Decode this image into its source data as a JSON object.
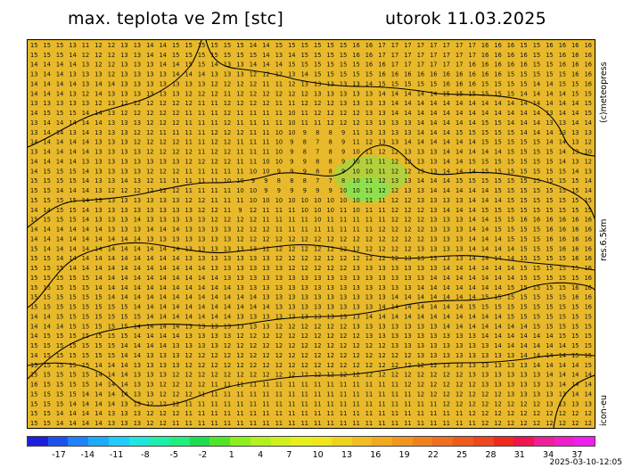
{
  "title_left": "max. teplota ve 2m [stc]",
  "title_right": "utorok 11.03.2025",
  "side_brand": "(c)meteopress",
  "side_res": "res.6.5km",
  "side_model": "icon-eu",
  "timestamp": "2025-03-10-12:05",
  "colorbar": {
    "tick_labels": [
      "-17",
      "-14",
      "-11",
      "-8",
      "-5",
      "-2",
      "1",
      "4",
      "7",
      "10",
      "13",
      "16",
      "19",
      "22",
      "25",
      "28",
      "31",
      "34",
      "37"
    ],
    "colors": [
      "#1e1edc",
      "#1e50f0",
      "#1e82fa",
      "#1eaafa",
      "#1ecdfa",
      "#1ee6dc",
      "#1ef0aa",
      "#1ef07d",
      "#1edc50",
      "#50e628",
      "#8cf01e",
      "#b4f01e",
      "#d2f01e",
      "#e6f01e",
      "#f0e61e",
      "#f0d21e",
      "#f0be1e",
      "#f0aa1e",
      "#f0961e",
      "#f0821e",
      "#f06e1e",
      "#f05a1e",
      "#f0461e",
      "#f0281e",
      "#f01450",
      "#f01e96",
      "#f01ec8",
      "#f01ef0"
    ]
  },
  "map": {
    "base_color": "#e8b92a",
    "cold_color": "#8fe04a",
    "line_color": "#000000",
    "rows": [
      "15 15 15 13 11 12 12 13 13 14 14 15 15 15 15 15 15 14 14 15 15 15 15 15 15 16 16 17 17 17 17 17 17 17 17 16 16 16 15 15 16 16 16 16",
      "15 15 15 14 12 12 12 13 13 14 14 15 15 15 15 15 15 15 14 13 14 15 15 15 15 16 16 17 17 17 17 17 17 17 17 16 16 16 16 15 15 16 16 16",
      "14 14 14 14 13 12 12 13 13 13 14 14 15 15 14 13 13 14 14 14 15 15 15 15 15 15 16 16 17 17 17 17 17 17 16 16 16 16 16 15 15 16 16 16",
      "13 14 14 13 13 13 12 13 13 13 13 14 14 14 13 13 13 12 12 12 13 14 15 15 15 15 15 16 16 16 16 16 16 16 16 16 16 15 15 15 15 15 16 16",
      "14 14 14 14 13 14 14 13 13 13 13 13 13 13 12 12 12 12 11 11 12 13 13 13 13 13 14 15 15 15 15 15 16 16 16 15 15 15 15 14 14 15 15 16",
      "14 14 14 13 12 14 13 13 13 13 13 13 12 12 12 11 12 12 12 12 12 12 13 13 13 13 13 14 14 14 14 14 15 15 15 15 15 15 14 14 14 14 15 15",
      "13 13 13 13 13 12 13 12 12 12 12 12 12 11 11 12 12 12 12 11 11 12 12 12 13 13 13 13 14 14 14 14 14 14 14 14 14 14 14 14 14 14 14 15",
      "14 15 15 15 14 14 13 12 12 12 12 12 11 11 11 12 11 11 11 11 10 11 12 12 12 12 13 13 14 14 14 14 14 14 14 14 14 14 14 14 13 14 14 15",
      "13 14 14 14 14 14 13 13 13 12 12 12 11 11 11 12 11 11 11 11 10 11 11 12 12 12 13 13 13 13 14 14 14 14 14 15 15 14 14 14 13 13 14 14",
      "13 14 14 13 14 13 13 13 12 12 11 11 11 11 12 12 12 11 11 10 10 9 8 8 9 11 13 13 13 13 14 14 14 15 15 15 15 15 14 14 14 13 13 13",
      "14 14 14 14 14 13 13 13 12 12 12 12 11 11 12 12 11 11 11 10 9 8 7 8 9 11 12 13 13 14 14 14 14 14 14 15 15 15 15 15 14 14 13 12",
      "13 14 14 14 14 13 13 13 13 12 12 12 12 11 12 12 11 11 11 10 9 8 7 8 9 10 11 12 12 13 13 13 14 14 14 14 14 15 15 15 15 14 13 10",
      "14 14 14 14 13 13 13 13 13 13 13 13 12 12 12 12 11 11 10 10 9 9 8 8 9 10 11 11 12 12 13 13 14 14 15 15 15 15 15 15 15 14 13 12",
      "14 15 15 15 14 13 13 13 13 12 12 12 11 11 11 11 11 10 10 9 9 9 8 8 9 10 10 11 12 12 13 13 14 14 14 15 15 15 15 15 15 15 14 13",
      "15 15 15 15 14 13 13 14 13 12 11 11 11 11 11 10 10 9 9 8 8 8 7 7 8 10 11 12 13 13 14 14 14 15 15 15 15 15 15 15 15 15 15 14",
      "15 15 14 14 14 13 12 12 12 12 12 12 11 11 11 11 10 10 9 9 9 9 9 9 10 10 11 12 12 13 13 14 14 14 14 14 15 15 15 15 15 15 15 14",
      "15 15 15 15 14 13 13 13 13 13 13 13 12 12 11 11 11 10 10 10 10 10 10 10 10 10 11 11 12 12 13 13 13 13 14 14 14 15 15 15 15 15 15 15",
      "14 14 15 15 14 13 13 13 13 13 13 13 13 12 12 11 9 12 11 11 11 10 10 10 11 10 11 11 12 12 12 13 14 14 14 15 15 15 15 15 15 15 15 15",
      "15 15 15 15 14 13 13 13 14 13 13 13 13 13 12 12 12 12 11 11 11 11 10 11 11 11 11 11 12 12 12 13 13 13 14 14 15 15 16 16 16 16 16 16",
      "14 14 14 14 14 14 13 13 13 14 14 14 13 13 13 13 12 12 12 11 11 11 11 11 11 11 11 12 12 12 12 13 13 13 14 14 15 15 15 15 16 16 16 16",
      "14 14 14 14 14 14 14 14 14 13 13 13 13 13 13 13 12 12 12 12 12 12 12 12 12 12 12 12 12 12 12 13 13 13 14 14 14 15 15 15 16 16 16 16",
      "15 14 14 14 14 14 14 14 14 14 14 14 13 13 13 13 13 13 12 12 12 12 12 12 12 12 12 12 12 12 13 13 13 13 14 14 14 14 15 15 15 16 16 16",
      "15 15 14 14 14 14 14 14 14 14 14 14 13 13 13 13 13 13 13 12 12 12 12 12 12 12 12 12 12 13 13 13 13 13 14 14 14 14 15 15 15 15 16 16",
      "15 15 15 14 14 14 14 14 14 14 14 14 14 14 13 13 13 13 13 13 12 12 12 12 12 13 13 13 13 13 13 13 14 14 14 14 14 14 15 15 15 15 15 16",
      "15 15 15 15 15 14 14 14 14 14 14 14 14 14 14 13 13 13 13 13 13 13 13 13 13 13 13 13 13 13 13 14 14 14 14 14 14 14 15 15 15 15 15 16",
      "15 15 15 15 15 14 14 14 14 14 14 14 14 14 14 14 13 13 13 13 13 13 13 13 13 13 13 13 13 13 14 14 14 14 14 14 14 15 15 15 15 15 16 16",
      "15 15 15 15 15 15 14 14 14 14 14 14 14 14 14 14 14 14 13 13 13 13 13 13 13 13 13 13 14 14 14 14 14 14 14 15 15 15 15 15 15 15 16 16",
      "15 15 15 15 15 15 15 15 14 14 14 14 14 14 14 14 14 14 14 13 13 13 13 13 13 13 13 14 14 14 14 14 14 14 15 15 15 15 15 15 15 15 15 16",
      "14 14 15 15 15 15 15 15 15 14 14 14 14 14 14 14 13 13 13 13 13 13 13 13 13 13 14 14 14 14 14 14 14 14 14 14 14 15 15 15 15 15 15 15",
      "14 14 14 15 15 15 15 15 14 14 14 14 13 13 13 13 13 13 13 12 12 12 12 12 12 13 13 13 13 13 13 13 14 14 14 14 14 14 14 15 15 15 15 15",
      "14 15 15 15 15 15 15 15 14 14 14 14 13 13 13 13 12 12 12 12 12 12 12 12 12 12 13 13 13 13 13 13 13 13 13 14 14 14 14 14 14 15 15 15",
      "15 15 15 15 15 15 15 14 14 14 14 13 13 13 13 12 12 12 12 12 12 12 12 12 12 12 12 12 13 13 13 13 13 13 13 13 14 14 14 14 14 14 15 15",
      "14 15 15 15 15 15 15 14 14 13 13 13 12 12 12 12 12 12 12 12 12 12 12 12 12 12 12 12 12 12 13 13 13 13 13 13 13 13 14 14 14 14 15 15",
      "15 15 15 15 15 14 14 14 13 13 13 13 12 12 12 12 12 12 12 12 12 12 12 12 12 12 12 12 12 12 12 12 13 13 13 13 13 13 13 14 14 14 14 15",
      "15 15 15 15 15 14 14 14 13 13 13 12 12 12 12 12 12 12 12 12 12 12 12 12 12 12 12 12 12 12 12 12 12 12 13 13 13 13 13 13 14 14 14 14",
      "16 15 15 15 15 14 14 14 13 13 12 12 12 12 11 11 11 11 11 11 11 11 11 11 11 11 11 11 11 12 12 12 12 12 12 13 13 13 13 13 13 14 14 14",
      "15 15 15 15 14 14 14 14 13 13 12 12 12 11 11 11 11 11 11 11 11 11 11 11 11 11 11 11 11 11 12 12 12 12 12 12 12 13 13 13 13 13 14 14",
      "15 15 15 14 14 14 14 13 13 12 12 12 11 11 11 11 11 11 11 11 11 11 11 11 11 11 11 11 11 11 11 11 12 12 12 12 12 12 12 12 13 13 13 13",
      "15 15 14 14 14 14 13 13 13 12 12 12 11 11 11 11 11 11 11 11 11 11 11 11 11 11 11 11 11 11 11 11 11 11 12 12 12 12 12 12 12 12 12 12",
      "15 15 14 14 14 14 13 13 13 12 12 11 11 11 11 11 11 11 11 11 11 11 11 11 11 11 11 11 11 11 11 11 11 11 11 12 12 12 12 12 12 12 12 12"
    ]
  }
}
